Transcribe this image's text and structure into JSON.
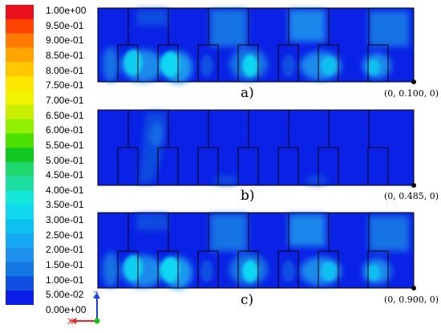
{
  "legend": {
    "labels": [
      "1.00e+00",
      "9.50e-01",
      "9.00e-01",
      "8.50e-01",
      "8.00e-01",
      "7.50e-01",
      "7.00e-01",
      "6.50e-01",
      "6.00e-01",
      "5.50e-01",
      "5.00e-01",
      "4.50e-01",
      "4.00e-01",
      "3.50e-01",
      "3.00e-01",
      "2.50e-01",
      "2.00e-01",
      "1.50e-01",
      "1.00e-01",
      "5.00e-02",
      "0.00e+00"
    ],
    "colors": [
      "#e8101a",
      "#ff4400",
      "#ff7a00",
      "#ffa500",
      "#ffc800",
      "#ffe600",
      "#f0f400",
      "#c8f000",
      "#90f000",
      "#4be000",
      "#10c820",
      "#20d870",
      "#1de0a0",
      "#14e8d8",
      "#10d8f0",
      "#0cc0f0",
      "#14a8f0",
      "#1c90ec",
      "#1478e4",
      "#1050e0",
      "#0a1ee8"
    ]
  },
  "panels": [
    {
      "id": "a",
      "caption": "a)",
      "coordinate": "(0, 0.100, 0)"
    },
    {
      "id": "b",
      "caption": "b)",
      "coordinate": "(0, 0.485, 0)"
    },
    {
      "id": "c",
      "caption": "c)",
      "coordinate": "(0, 0.900, 0)"
    }
  ],
  "axes": {
    "z": "Z",
    "x": "X"
  },
  "colors": {
    "background": "#0a22e6",
    "outline": "#000000"
  }
}
